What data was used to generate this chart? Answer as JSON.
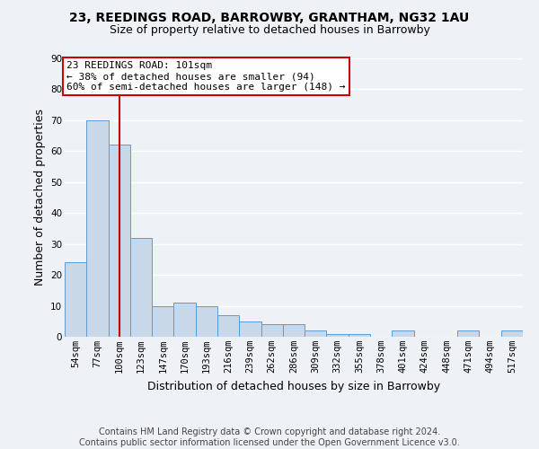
{
  "title1": "23, REEDINGS ROAD, BARROWBY, GRANTHAM, NG32 1AU",
  "title2": "Size of property relative to detached houses in Barrowby",
  "xlabel": "Distribution of detached houses by size in Barrowby",
  "ylabel": "Number of detached properties",
  "categories": [
    "54sqm",
    "77sqm",
    "100sqm",
    "123sqm",
    "147sqm",
    "170sqm",
    "193sqm",
    "216sqm",
    "239sqm",
    "262sqm",
    "286sqm",
    "309sqm",
    "332sqm",
    "355sqm",
    "378sqm",
    "401sqm",
    "424sqm",
    "448sqm",
    "471sqm",
    "494sqm",
    "517sqm"
  ],
  "values": [
    24,
    70,
    62,
    32,
    10,
    11,
    10,
    7,
    5,
    4,
    4,
    2,
    1,
    1,
    0,
    2,
    0,
    0,
    2,
    0,
    2
  ],
  "bar_color": "#c8d8e8",
  "bar_edge_color": "#5b9bd5",
  "vline_x_index": 2,
  "vline_color": "#cc0000",
  "annotation_line1": "23 REEDINGS ROAD: 101sqm",
  "annotation_line2": "← 38% of detached houses are smaller (94)",
  "annotation_line3": "60% of semi-detached houses are larger (148) →",
  "annotation_box_color": "white",
  "annotation_box_edge_color": "#cc0000",
  "ylim": [
    0,
    90
  ],
  "yticks": [
    0,
    10,
    20,
    30,
    40,
    50,
    60,
    70,
    80,
    90
  ],
  "footer": "Contains HM Land Registry data © Crown copyright and database right 2024.\nContains public sector information licensed under the Open Government Licence v3.0.",
  "bg_color": "#eef2f7",
  "grid_color": "white",
  "title_fontsize": 10,
  "subtitle_fontsize": 9,
  "axis_label_fontsize": 9,
  "tick_fontsize": 7.5,
  "footer_fontsize": 7,
  "ann_fontsize": 8
}
